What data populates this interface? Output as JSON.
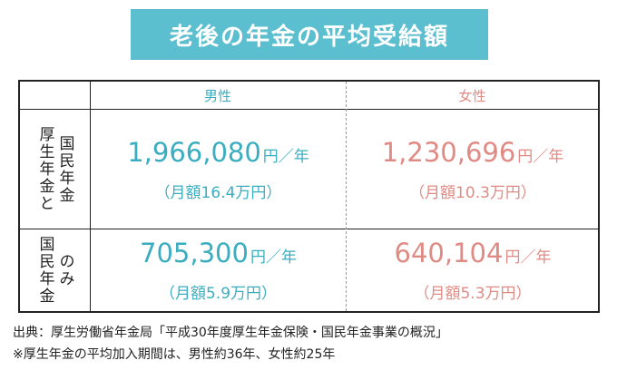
{
  "title": "老後の年金の平均受給額",
  "table": {
    "col_male": "男性",
    "col_female": "女性",
    "rows": [
      {
        "label_col1": "厚生年金と",
        "label_col2": "国民年金",
        "male": {
          "amount": "1,966,080",
          "unit": "円／年",
          "monthly": "（月額16.4万円）"
        },
        "female": {
          "amount": "1,230,696",
          "unit": "円／年",
          "monthly": "（月額10.3万円）"
        }
      },
      {
        "label_col1": "国民年金",
        "label_col2": "のみ",
        "male": {
          "amount": "705,300",
          "unit": "円／年",
          "monthly": "（月額5.9万円）"
        },
        "female": {
          "amount": "640,104",
          "unit": "円／年",
          "monthly": "（月額5.3万円）"
        }
      }
    ]
  },
  "notes": {
    "source": "出典：厚生労働省年金局「平成30年度厚生年金保険・国民年金事業の概況」",
    "remark": "※厚生年金の平均加入期間は、男性約36年、女性約25年"
  },
  "colors": {
    "title_bg": "#5bbfcf",
    "male": "#3aaec0",
    "female": "#e08a84"
  }
}
